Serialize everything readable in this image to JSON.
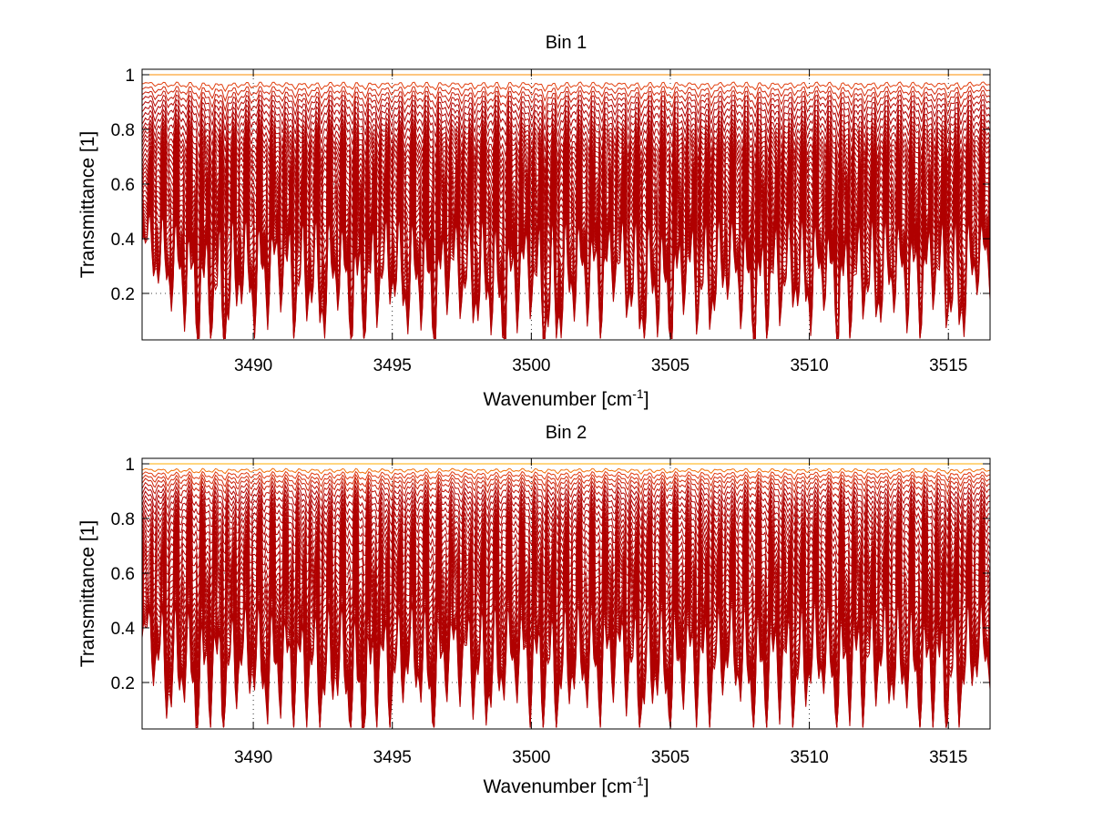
{
  "figure": {
    "background": "#ffffff",
    "line_colors": {
      "deep": "#b00000",
      "mid": "#e03a10",
      "light": "#ff9a00",
      "top": "#ffd200"
    }
  },
  "chart_data": [
    {
      "type": "line",
      "title": "Bin 1",
      "xlabel": "Wavenumber [cm",
      "xlabel_sup": "-1",
      "xlabel_close": "]",
      "ylabel": "Transmittance [1]",
      "xlim": [
        3486,
        3516.5
      ],
      "ylim": [
        0.03,
        1.02
      ],
      "xticks": [
        3490,
        3495,
        3500,
        3505,
        3510,
        3515
      ],
      "xtick_labels": [
        "3490",
        "3495",
        "3500",
        "3505",
        "3510",
        "3515"
      ],
      "yticks": [
        0.2,
        0.4,
        0.6,
        0.8,
        1.0
      ],
      "ytick_labels": [
        "0.2",
        "0.4",
        "0.6",
        "0.8",
        "1"
      ],
      "grid": "dotted",
      "series_count": 40,
      "line_x": [
        3486,
        3486.5,
        3487,
        3487.5,
        3488,
        3488.5,
        3489,
        3489.5,
        3490,
        3490.5,
        3491,
        3491.5,
        3492,
        3492.5,
        3493,
        3493.5,
        3494,
        3494.5,
        3495,
        3495.5,
        3496,
        3496.5,
        3497,
        3497.5,
        3498,
        3498.5,
        3499,
        3499.5,
        3500,
        3500.5,
        3501,
        3501.5,
        3502,
        3502.5,
        3503,
        3503.5,
        3504,
        3504.5,
        3505,
        3505.5,
        3506,
        3506.5,
        3507,
        3507.5,
        3508,
        3508.5,
        3509,
        3509.5,
        3510,
        3510.5,
        3511,
        3511.5,
        3512,
        3512.5,
        3513,
        3513.5,
        3514,
        3514.5,
        3515,
        3515.5,
        3516
      ],
      "line_depth": [
        0.2,
        0.45,
        0.55,
        0.6,
        0.85,
        0.75,
        0.9,
        0.55,
        0.7,
        0.6,
        0.5,
        0.72,
        0.62,
        0.8,
        0.5,
        0.82,
        0.78,
        0.6,
        0.55,
        0.72,
        0.6,
        0.9,
        0.5,
        0.6,
        0.72,
        0.66,
        0.95,
        0.6,
        0.55,
        0.9,
        0.82,
        0.6,
        0.58,
        0.7,
        0.45,
        0.65,
        0.85,
        0.65,
        0.92,
        0.5,
        0.68,
        0.72,
        0.5,
        0.6,
        0.88,
        0.7,
        0.62,
        0.6,
        0.72,
        0.5,
        0.85,
        0.68,
        0.6,
        0.72,
        0.55,
        0.62,
        0.7,
        0.5,
        0.72,
        0.8,
        0.45
      ],
      "top_transmittance": [
        0.98,
        0.86,
        0.72,
        0.62,
        0.5,
        0.4,
        0.28,
        0.2,
        0.13,
        0.08
      ],
      "peak_depths": [
        0.7,
        0.85,
        0.8,
        0.95,
        0.7,
        0.9,
        0.8,
        0.95,
        0.85,
        0.65
      ]
    },
    {
      "type": "line",
      "title": "Bin 2",
      "xlabel": "Wavenumber [cm",
      "xlabel_sup": "-1",
      "xlabel_close": "]",
      "ylabel": "Transmittance [1]",
      "xlim": [
        3486,
        3516.5
      ],
      "ylim": [
        0.03,
        1.02
      ],
      "xticks": [
        3490,
        3495,
        3500,
        3505,
        3510,
        3515
      ],
      "xtick_labels": [
        "3490",
        "3495",
        "3500",
        "3505",
        "3510",
        "3515"
      ],
      "yticks": [
        0.2,
        0.4,
        0.6,
        0.8,
        1.0
      ],
      "ytick_labels": [
        "0.2",
        "0.4",
        "0.6",
        "0.8",
        "1"
      ],
      "grid": "dotted",
      "series_count": 40,
      "line_x": [
        3486,
        3486.5,
        3487,
        3487.5,
        3488,
        3488.5,
        3489,
        3489.5,
        3490,
        3490.5,
        3491,
        3491.5,
        3492,
        3492.5,
        3493,
        3493.5,
        3494,
        3494.5,
        3495,
        3495.5,
        3496,
        3496.5,
        3497,
        3497.5,
        3498,
        3498.5,
        3499,
        3499.5,
        3500,
        3500.5,
        3501,
        3501.5,
        3502,
        3502.5,
        3503,
        3503.5,
        3504,
        3504.5,
        3505,
        3505.5,
        3506,
        3506.5,
        3507,
        3507.5,
        3508,
        3508.5,
        3509,
        3509.5,
        3510,
        3510.5,
        3511,
        3511.5,
        3512,
        3512.5,
        3513,
        3513.5,
        3514,
        3514.5,
        3515,
        3515.5,
        3516
      ],
      "line_depth": [
        0.3,
        0.5,
        0.78,
        0.6,
        0.88,
        0.65,
        0.8,
        0.55,
        0.6,
        0.72,
        0.62,
        0.7,
        0.66,
        0.78,
        0.6,
        0.85,
        0.95,
        0.62,
        0.75,
        0.55,
        0.62,
        0.86,
        0.5,
        0.55,
        0.66,
        0.78,
        0.6,
        0.55,
        0.68,
        0.72,
        0.78,
        0.6,
        0.62,
        0.7,
        0.5,
        0.62,
        0.86,
        0.6,
        0.84,
        0.55,
        0.66,
        0.72,
        0.5,
        0.62,
        0.78,
        0.7,
        0.62,
        0.75,
        0.6,
        0.55,
        0.82,
        0.62,
        0.7,
        0.55,
        0.68,
        0.62,
        0.78,
        0.66,
        0.85,
        0.7,
        0.5
      ],
      "top_transmittance": [
        0.99,
        0.9,
        0.78,
        0.65,
        0.52,
        0.42,
        0.3,
        0.2,
        0.14,
        0.09
      ],
      "peak_depths": [
        0.75,
        0.8,
        0.95,
        0.7,
        0.85,
        0.8,
        0.9,
        0.8,
        0.85,
        0.7
      ]
    }
  ]
}
